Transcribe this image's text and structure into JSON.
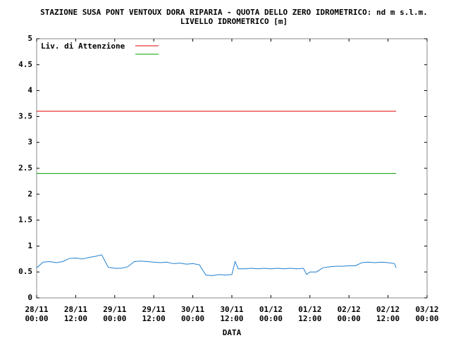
{
  "chart_data": {
    "type": "line",
    "title": "STAZIONE SUSA PONT VENTOUX DORA RIPARIA - QUOTA DELLO ZERO IDROMETRICO: nd m s.l.m.",
    "subtitle": "LIVELLO IDROMETRICO [m]",
    "x_label": "DATA",
    "xlim": [
      0,
      120
    ],
    "xticks": [
      {
        "value": 0,
        "label": "28/11\n00:00"
      },
      {
        "value": 12,
        "label": "28/11\n12:00"
      },
      {
        "value": 24,
        "label": "29/11\n00:00"
      },
      {
        "value": 36,
        "label": "29/11\n12:00"
      },
      {
        "value": 48,
        "label": "30/11\n00:00"
      },
      {
        "value": 60,
        "label": "30/11\n12:00"
      },
      {
        "value": 72,
        "label": "01/12\n00:00"
      },
      {
        "value": 84,
        "label": "01/12\n12:00"
      },
      {
        "value": 96,
        "label": "02/12\n00:00"
      },
      {
        "value": 108,
        "label": "02/12\n12:00"
      },
      {
        "value": 120,
        "label": "03/12\n00:00"
      }
    ],
    "ylim": [
      0,
      5
    ],
    "yticks": [
      0,
      0.5,
      1,
      1.5,
      2,
      2.5,
      3,
      3.5,
      4,
      4.5,
      5
    ],
    "grid": false,
    "legend": "upper left",
    "series": [
      {
        "name": "Liv. di Attenzione",
        "color": "#e00000",
        "x": [
          0,
          110.5
        ],
        "values": [
          3.6,
          3.6
        ]
      },
      {
        "color": "#00a000",
        "x": [
          0,
          110.5
        ],
        "values": [
          2.4,
          2.4
        ]
      },
      {
        "color": "#1f7fd0",
        "x": [
          0,
          2,
          4,
          6,
          8,
          10,
          12,
          14,
          16,
          18,
          20,
          22,
          24,
          26,
          28,
          30,
          32,
          34,
          36,
          38,
          40,
          42,
          44,
          46,
          48,
          50,
          52,
          54,
          56,
          58,
          60,
          61,
          62,
          64,
          66,
          68,
          70,
          72,
          74,
          76,
          78,
          80,
          82,
          83,
          84,
          86,
          88,
          90,
          92,
          94,
          96,
          98,
          100,
          102,
          104,
          106,
          108,
          110,
          110.5
        ],
        "values": [
          0.58,
          0.69,
          0.7,
          0.68,
          0.7,
          0.76,
          0.77,
          0.75,
          0.78,
          0.8,
          0.83,
          0.59,
          0.57,
          0.57,
          0.6,
          0.7,
          0.71,
          0.7,
          0.69,
          0.68,
          0.69,
          0.66,
          0.67,
          0.65,
          0.66,
          0.64,
          0.44,
          0.43,
          0.45,
          0.44,
          0.45,
          0.7,
          0.56,
          0.56,
          0.57,
          0.56,
          0.57,
          0.56,
          0.57,
          0.56,
          0.57,
          0.56,
          0.57,
          0.45,
          0.5,
          0.5,
          0.58,
          0.6,
          0.61,
          0.61,
          0.62,
          0.62,
          0.68,
          0.69,
          0.68,
          0.69,
          0.68,
          0.66,
          0.58
        ]
      }
    ]
  }
}
